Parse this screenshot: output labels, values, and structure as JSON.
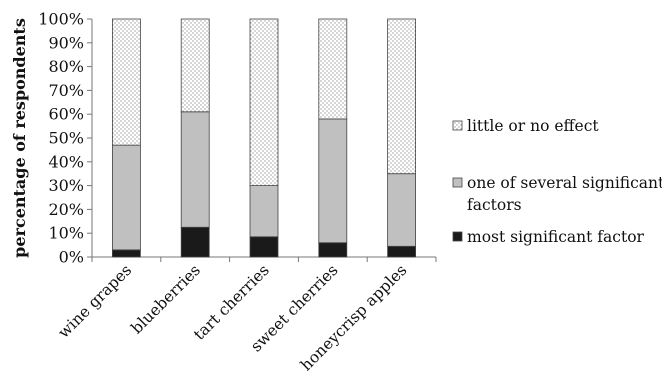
{
  "chart_data": {
    "type": "bar",
    "stacked": true,
    "title": "",
    "xlabel": "",
    "ylabel": "percentage of respondents",
    "ylim": [
      0,
      100
    ],
    "yticks": [
      "0%",
      "10%",
      "20%",
      "30%",
      "40%",
      "50%",
      "60%",
      "70%",
      "80%",
      "90%",
      "100%"
    ],
    "grid": false,
    "legend_position": "right",
    "categories": [
      "wine grapes",
      "blueberries",
      "tart cherries",
      "sweet cherries",
      "honeycrisp apples"
    ],
    "series": [
      {
        "name": "most significant factor",
        "values": [
          3,
          12.5,
          8.5,
          6,
          4.5
        ],
        "color": "#1a1a1a",
        "pattern": "solid"
      },
      {
        "name": "one of several significant factors",
        "values": [
          44,
          48.5,
          21.5,
          52,
          30.5
        ],
        "color": "#c0c0c0",
        "pattern": "solid"
      },
      {
        "name": "little or no effect",
        "values": [
          53,
          39,
          70,
          42,
          65
        ],
        "color": "#ffffff",
        "pattern": "dotted"
      }
    ],
    "legend_order": [
      2,
      1,
      0
    ],
    "legend_lines": [
      [
        "little or no effect"
      ],
      [
        "one of several significant",
        "factors"
      ],
      [
        "most significant factor"
      ]
    ]
  }
}
